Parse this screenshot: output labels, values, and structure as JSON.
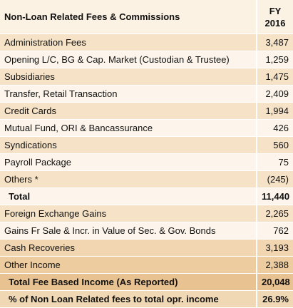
{
  "header": {
    "columns": [
      "Non-Loan Related Fees & Commissions",
      "FY 2016"
    ]
  },
  "table": {
    "rows": [
      [
        "Administration Fees",
        "3,487"
      ],
      [
        "Opening L/C, BG & Cap. Market (Custodian & Trustee)",
        "1,259"
      ],
      [
        "Subsidiaries",
        "1,475"
      ],
      [
        "Transfer, Retail Transaction",
        "2,409"
      ],
      [
        "Credit Cards",
        "1,994"
      ],
      [
        "Mutual Fund, ORI & Bancassurance",
        "426"
      ],
      [
        "Syndications",
        "560"
      ],
      [
        "Payroll Package",
        "75"
      ],
      [
        "Others *",
        "(245)"
      ],
      [
        "Total",
        "11,440"
      ],
      [
        "Foreign Exchange Gains",
        "2,265"
      ],
      [
        "Gains Fr Sale & Incr. in Value of Sec. & Gov. Bonds",
        "762"
      ],
      [
        "Cash Recoveries",
        "3,193"
      ],
      [
        "Other Income",
        "2,388"
      ],
      [
        "Total Fee Based Income (As Reported)",
        "20,048"
      ],
      [
        "% of Non Loan Related fees to total opr. income",
        "26.9%"
      ]
    ]
  }
}
